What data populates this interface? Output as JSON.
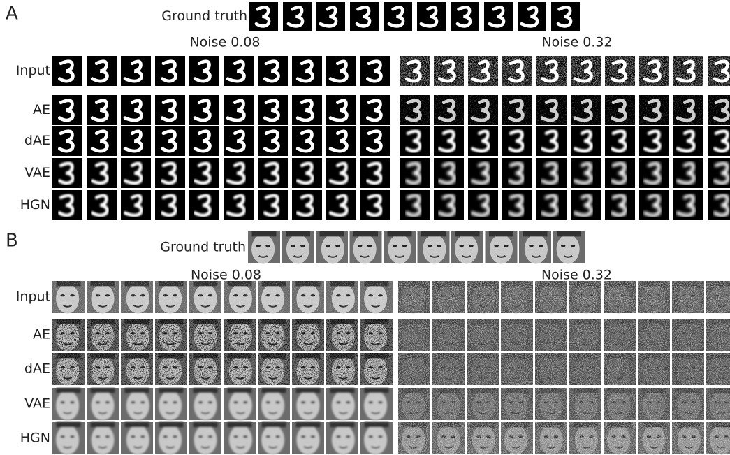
{
  "panels": [
    {
      "label": "A",
      "ground_truth_label": "Ground truth",
      "noise_titles": [
        "Noise 0.08",
        "Noise 0.32"
      ],
      "row_labels": [
        "Input",
        "AE",
        "dAE",
        "VAE",
        "HGN"
      ]
    },
    {
      "label": "B",
      "ground_truth_label": "Ground truth",
      "noise_titles": [
        "Noise 0.08",
        "Noise 0.32"
      ],
      "row_labels": [
        "Input",
        "AE",
        "dAE",
        "VAE",
        "HGN"
      ]
    }
  ]
}
